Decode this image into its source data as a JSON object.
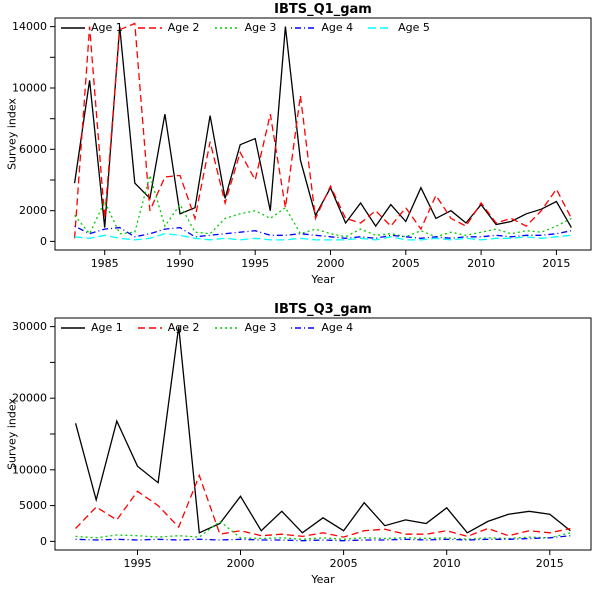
{
  "chart_data": [
    {
      "type": "line",
      "title": "IBTS_Q1_gam",
      "xlabel": "Year",
      "ylabel": "Survey index",
      "grid": false,
      "legend_position": "top-left-horizontal",
      "x": [
        1983,
        1984,
        1985,
        1986,
        1987,
        1988,
        1989,
        1990,
        1991,
        1992,
        1993,
        1994,
        1995,
        1996,
        1997,
        1998,
        1999,
        2000,
        2001,
        2002,
        2003,
        2004,
        2005,
        2006,
        2007,
        2008,
        2009,
        2010,
        2011,
        2012,
        2013,
        2014,
        2015,
        2016
      ],
      "xlim": [
        1981.7,
        2017.3
      ],
      "ylim": [
        -560,
        14560
      ],
      "xticks": [
        1985,
        1990,
        1995,
        2000,
        2005,
        2010,
        2015
      ],
      "xtick_labels": [
        "1985",
        "1990",
        "1995",
        "2000",
        "2005",
        "2010",
        "2015"
      ],
      "yticks": [
        0,
        2000,
        4000,
        6000,
        8000,
        10000,
        12000,
        14000
      ],
      "ytick_labels": [
        "0",
        "2000",
        "",
        "6000",
        "",
        "10000",
        "",
        "14000"
      ],
      "series": [
        {
          "name": "Age 1",
          "color": "#000000",
          "dash": "",
          "values": [
            3800,
            10500,
            900,
            14000,
            3800,
            2800,
            8300,
            1800,
            2200,
            8200,
            2800,
            6300,
            6700,
            2000,
            14000,
            5300,
            1700,
            3500,
            1200,
            2500,
            1000,
            2400,
            1300,
            3500,
            1500,
            2000,
            1200,
            2400,
            1100,
            1300,
            1800,
            2100,
            2600,
            900
          ]
        },
        {
          "name": "Age 2",
          "color": "#FF0000",
          "dash": "7,4",
          "values": [
            200,
            14000,
            1500,
            13800,
            14200,
            2000,
            4200,
            4300,
            1500,
            6500,
            2500,
            5800,
            4000,
            8300,
            2200,
            9500,
            1500,
            3600,
            1500,
            1200,
            2000,
            1000,
            2200,
            800,
            3000,
            1500,
            1000,
            2500,
            1200,
            1500,
            1000,
            2000,
            3400,
            1500
          ]
        },
        {
          "name": "Age 3",
          "color": "#00CD00",
          "dash": "2,3",
          "values": [
            1700,
            500,
            2600,
            500,
            600,
            4300,
            1000,
            2400,
            600,
            500,
            1500,
            1800,
            2000,
            1500,
            2200,
            500,
            800,
            500,
            300,
            800,
            400,
            500,
            300,
            700,
            300,
            600,
            400,
            600,
            800,
            500,
            700,
            600,
            1000,
            1500
          ]
        },
        {
          "name": "Age 4",
          "color": "#0000FF",
          "dash": "1,3,6,3",
          "values": [
            1000,
            500,
            800,
            900,
            300,
            500,
            800,
            900,
            300,
            400,
            500,
            600,
            700,
            400,
            400,
            500,
            400,
            300,
            200,
            300,
            200,
            400,
            300,
            200,
            300,
            200,
            300,
            300,
            400,
            300,
            400,
            400,
            500,
            700
          ]
        },
        {
          "name": "Age 5",
          "color": "#00FFFF",
          "dash": "8,4",
          "values": [
            300,
            200,
            400,
            200,
            100,
            200,
            500,
            400,
            200,
            100,
            200,
            100,
            200,
            100,
            100,
            200,
            100,
            100,
            100,
            200,
            100,
            300,
            100,
            100,
            200,
            100,
            200,
            100,
            200,
            200,
            300,
            200,
            300,
            400
          ]
        }
      ]
    },
    {
      "type": "line",
      "title": "IBTS_Q3_gam",
      "xlabel": "Year",
      "ylabel": "Survey index",
      "grid": false,
      "legend_position": "top-left-horizontal",
      "x": [
        1992,
        1993,
        1994,
        1995,
        1996,
        1997,
        1998,
        1999,
        2000,
        2001,
        2002,
        2003,
        2004,
        2005,
        2006,
        2007,
        2008,
        2009,
        2010,
        2011,
        2012,
        2013,
        2014,
        2015,
        2016
      ],
      "xlim": [
        1991,
        2017
      ],
      "ylim": [
        -1200,
        31200
      ],
      "xticks": [
        1995,
        2000,
        2005,
        2010,
        2015
      ],
      "xtick_labels": [
        "1995",
        "2000",
        "2005",
        "2010",
        "2015"
      ],
      "yticks": [
        0,
        5000,
        10000,
        15000,
        20000,
        25000,
        30000
      ],
      "ytick_labels": [
        "0",
        "5000",
        "10000",
        "",
        "20000",
        "",
        "30000"
      ],
      "series": [
        {
          "name": "Age 1",
          "color": "#000000",
          "dash": "",
          "values": [
            16500,
            5800,
            16800,
            10500,
            8200,
            30000,
            1200,
            2500,
            6300,
            1500,
            4200,
            1200,
            3300,
            1500,
            5400,
            2200,
            3000,
            2500,
            4700,
            1200,
            2800,
            3800,
            4200,
            3800,
            1500
          ]
        },
        {
          "name": "Age 2",
          "color": "#FF0000",
          "dash": "7,4",
          "values": [
            1800,
            4800,
            3000,
            7000,
            5000,
            2000,
            9200,
            1000,
            1500,
            800,
            1000,
            700,
            1200,
            600,
            1500,
            1700,
            1000,
            1000,
            1500,
            700,
            1800,
            800,
            1500,
            1200,
            1800
          ]
        },
        {
          "name": "Age 3",
          "color": "#00CD00",
          "dash": "2,3",
          "values": [
            700,
            500,
            900,
            800,
            600,
            800,
            600,
            2800,
            500,
            400,
            500,
            300,
            500,
            300,
            500,
            400,
            500,
            400,
            500,
            300,
            500,
            400,
            600,
            500,
            1200
          ]
        },
        {
          "name": "Age 4",
          "color": "#0000FF",
          "dash": "1,3,6,3",
          "values": [
            300,
            200,
            300,
            200,
            300,
            200,
            300,
            200,
            300,
            200,
            200,
            100,
            200,
            100,
            200,
            200,
            300,
            200,
            300,
            200,
            300,
            300,
            400,
            500,
            800
          ]
        }
      ]
    }
  ]
}
